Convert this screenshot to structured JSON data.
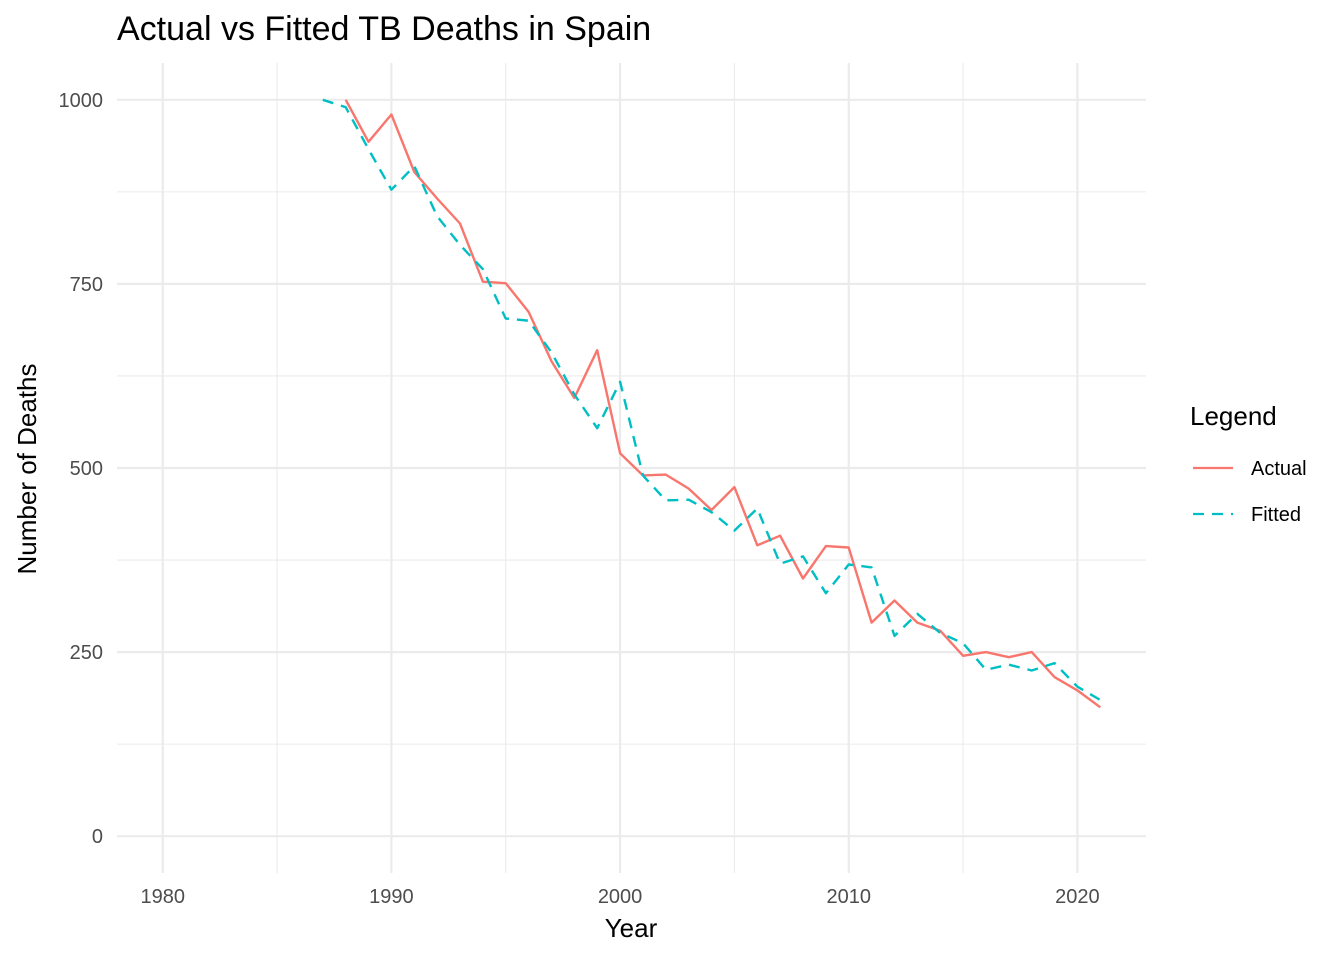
{
  "chart_data": {
    "type": "line",
    "title": "Actual vs Fitted TB Deaths in Spain",
    "xlabel": "Year",
    "ylabel": "Number of Deaths",
    "xlim": [
      1978,
      2023
    ],
    "ylim": [
      -50,
      1050
    ],
    "x_ticks": [
      1980,
      1990,
      2000,
      2010,
      2020
    ],
    "x_tick_labels": [
      "1980",
      "1990",
      "2000",
      "2010",
      "2020"
    ],
    "y_ticks": [
      0,
      250,
      500,
      750,
      1000
    ],
    "y_tick_labels": [
      "0",
      "250",
      "500",
      "750",
      "1000"
    ],
    "grid": true,
    "legend": {
      "title": "Legend",
      "position": "right"
    },
    "series": [
      {
        "name": "Actual",
        "color": "#f8766d",
        "dash": "solid",
        "x": [
          1988,
          1989,
          1990,
          1991,
          1992,
          1993,
          1994,
          1995,
          1996,
          1997,
          1998,
          1999,
          2000,
          2001,
          2002,
          2003,
          2004,
          2005,
          2006,
          2007,
          2008,
          2009,
          2010,
          2011,
          2012,
          2013,
          2014,
          2015,
          2016,
          2017,
          2018,
          2019,
          2020,
          2021
        ],
        "values": [
          1000,
          943,
          980,
          902,
          866,
          832,
          753,
          751,
          712,
          645,
          595,
          660,
          520,
          490,
          491,
          472,
          443,
          474,
          395,
          408,
          350,
          394,
          392,
          290,
          320,
          290,
          279,
          245,
          250,
          243,
          250,
          216,
          198,
          175
        ]
      },
      {
        "name": "Fitted",
        "color": "#00bfc4",
        "dash": "dashed",
        "x": [
          1987,
          1988,
          1989,
          1990,
          1991,
          1992,
          1993,
          1994,
          1995,
          1996,
          1997,
          1998,
          1999,
          2000,
          2001,
          2002,
          2003,
          2004,
          2005,
          2006,
          2007,
          2008,
          2009,
          2010,
          2011,
          2012,
          2013,
          2014,
          2015,
          2016,
          2017,
          2018,
          2019,
          2020,
          2021
        ],
        "values": [
          1000,
          990,
          933,
          878,
          910,
          842,
          803,
          770,
          703,
          700,
          657,
          600,
          554,
          617,
          490,
          456,
          457,
          440,
          415,
          445,
          370,
          380,
          330,
          369,
          365,
          272,
          302,
          276,
          262,
          226,
          233,
          225,
          235,
          203,
          185
        ]
      }
    ]
  }
}
